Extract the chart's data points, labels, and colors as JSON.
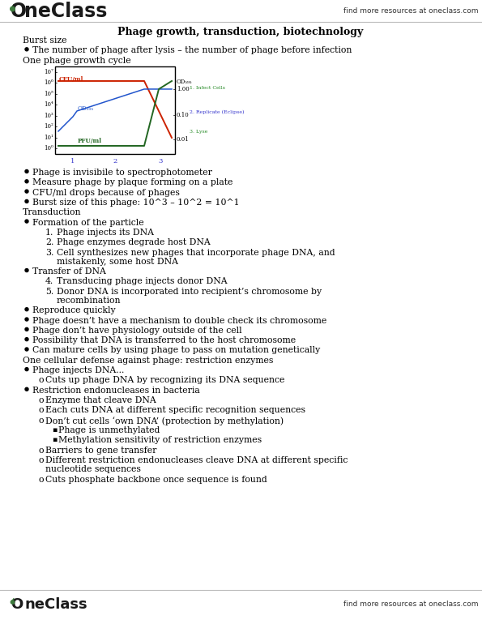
{
  "title": "Phage growth, transduction, biotechnology",
  "header_right": "find more resources at oneclass.com",
  "footer_right": "find more resources at oneclass.com",
  "bg_color": "#ffffff",
  "text_color": "#000000",
  "content": [
    {
      "type": "heading",
      "text": "Burst size",
      "indent": 0
    },
    {
      "type": "bullet",
      "text": "The number of phage after lysis – the number of phage before infection",
      "indent": 1
    },
    {
      "type": "heading",
      "text": "One phage growth cycle",
      "indent": 0
    },
    {
      "type": "graph",
      "indent": 0
    },
    {
      "type": "bullet",
      "text": "Phage is invisibile to spectrophotometer",
      "indent": 1
    },
    {
      "type": "bullet",
      "text": "Measure phage by plaque forming on a plate",
      "indent": 1
    },
    {
      "type": "bullet",
      "text": "CFU/ml drops because of phages",
      "indent": 1
    },
    {
      "type": "bullet",
      "text": "Burst size of this phage: 10^3 – 10^2 = 10^1",
      "indent": 1
    },
    {
      "type": "heading",
      "text": "Transduction",
      "indent": 0
    },
    {
      "type": "bullet",
      "text": "Formation of the particle",
      "indent": 1
    },
    {
      "type": "numbered",
      "text": "Phage injects its DNA",
      "num": "1.",
      "indent": 2
    },
    {
      "type": "numbered",
      "text": "Phage enzymes degrade host DNA",
      "num": "2.",
      "indent": 2
    },
    {
      "type": "numbered",
      "text": "Cell synthesizes new phages that incorporate phage DNA, and\nmistakenly, some host DNA",
      "num": "3.",
      "indent": 2
    },
    {
      "type": "bullet",
      "text": "Transfer of DNA",
      "indent": 1
    },
    {
      "type": "numbered",
      "text": "Transducing phage injects donor DNA",
      "num": "4.",
      "indent": 2
    },
    {
      "type": "numbered",
      "text": "Donor DNA is incorporated into recipient’s chromosome by\nrecombination",
      "num": "5.",
      "indent": 2
    },
    {
      "type": "bullet",
      "text": "Reproduce quickly",
      "indent": 1
    },
    {
      "type": "bullet",
      "text": "Phage doesn’t have a mechanism to double check its chromosome",
      "indent": 1
    },
    {
      "type": "bullet",
      "text": "Phage don’t have physiology outside of the cell",
      "indent": 1
    },
    {
      "type": "bullet",
      "text": "Possibility that DNA is transferred to the host chromosome",
      "indent": 1
    },
    {
      "type": "bullet",
      "text": "Can mature cells by using phage to pass on mutation genetically",
      "indent": 1
    },
    {
      "type": "heading",
      "text": "One cellular defense against phage: restriction enzymes",
      "indent": 0
    },
    {
      "type": "bullet",
      "text": "Phage injects DNA...",
      "indent": 1
    },
    {
      "type": "sub_bullet",
      "text": "Cuts up phage DNA by recognizing its DNA sequence",
      "indent": 2
    },
    {
      "type": "bullet",
      "text": "Restriction endonucleases in bacteria",
      "indent": 1
    },
    {
      "type": "sub_bullet",
      "text": "Enzyme that cleave DNA",
      "indent": 2
    },
    {
      "type": "sub_bullet",
      "text": "Each cuts DNA at different specific recognition sequences",
      "indent": 2
    },
    {
      "type": "sub_bullet",
      "text": "Don’t cut cells ‘own DNA’ (protection by methylation)",
      "indent": 2
    },
    {
      "type": "sub_sub_bullet",
      "text": "Phage is unmethylated",
      "indent": 3
    },
    {
      "type": "sub_sub_bullet",
      "text": "Methylation sensitivity of restriction enzymes",
      "indent": 3
    },
    {
      "type": "sub_bullet",
      "text": "Barriers to gene transfer",
      "indent": 2
    },
    {
      "type": "sub_bullet",
      "text": "Different restriction endonucleases cleave DNA at different specific\nnucleotide sequences",
      "indent": 2
    },
    {
      "type": "sub_bullet",
      "text": "Cuts phosphate backbone once sequence is found",
      "indent": 2
    }
  ]
}
